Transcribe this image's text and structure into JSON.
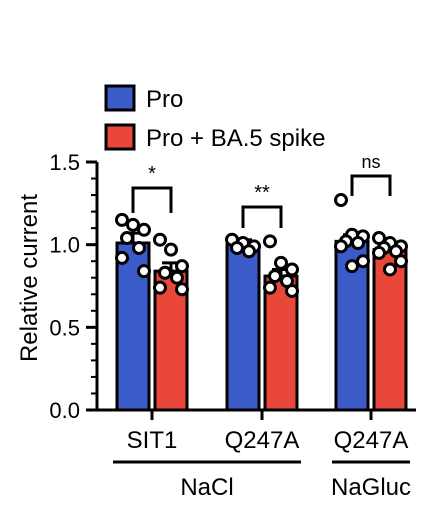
{
  "chart_data": {
    "type": "bar",
    "ylabel": "Relative current",
    "ylim": [
      0,
      1.5
    ],
    "yticks": [
      0.0,
      0.5,
      1.0,
      1.5
    ],
    "ytick_labels": [
      "0.0",
      "0.5",
      "1.0",
      "1.5"
    ],
    "minor_ticks_per_major": 5,
    "legend": {
      "position": "top-left"
    },
    "categories": [
      "SIT1",
      "Q247A",
      "Q247A"
    ],
    "groups": [
      {
        "label": "NaCl",
        "span": [
          0,
          1
        ]
      },
      {
        "label": "NaGluc",
        "span": [
          2,
          2
        ]
      }
    ],
    "series": [
      {
        "name": "Pro",
        "color": "#3B5BC8",
        "values": [
          1.01,
          1.0,
          1.02
        ],
        "errors": [
          0.06,
          0.03,
          0.04
        ],
        "points": [
          [
            1.15,
            1.12,
            1.09,
            1.04,
            0.98,
            0.92,
            0.84
          ],
          [
            1.03,
            1.01,
            0.99,
            0.98,
            0.96
          ],
          [
            1.27,
            1.06,
            1.05,
            1.02,
            1.01,
            0.99,
            0.9,
            0.87
          ]
        ]
      },
      {
        "name": "Pro + BA.5 spike",
        "color": "#E8473A",
        "values": [
          0.84,
          0.81,
          0.97
        ],
        "errors": [
          0.05,
          0.04,
          0.03
        ],
        "points": [
          [
            1.03,
            0.97,
            0.87,
            0.83,
            0.8,
            0.74,
            0.73
          ],
          [
            1.02,
            0.89,
            0.85,
            0.81,
            0.78,
            0.74,
            0.72
          ],
          [
            1.04,
            1.01,
            0.99,
            0.98,
            0.96,
            0.95,
            0.9,
            0.85
          ]
        ]
      }
    ],
    "significance": [
      "*",
      "**",
      "ns"
    ]
  }
}
